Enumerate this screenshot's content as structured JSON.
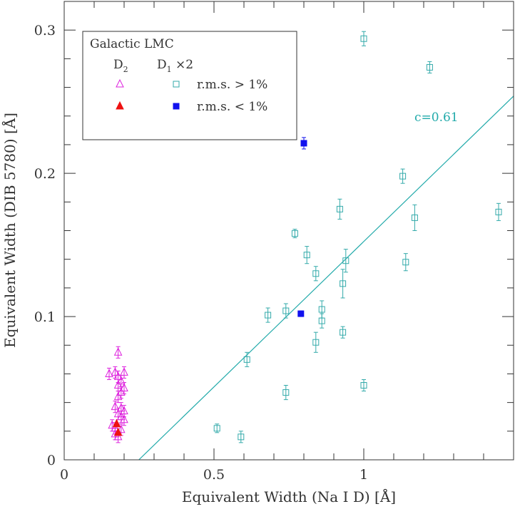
{
  "chart_data": {
    "type": "scatter",
    "xlabel": "Equivalent Width (Na I D) [Å]",
    "ylabel": "Equivalent Width (DIB 5780) [Å]",
    "xlim": [
      0,
      1.5
    ],
    "ylim": [
      0,
      0.32
    ],
    "x_ticks": [
      0,
      0.5,
      1
    ],
    "x_tick_labels": [
      "0",
      "0.5",
      "1"
    ],
    "y_ticks": [
      0,
      0.1,
      0.2,
      0.3
    ],
    "y_tick_labels": [
      "0",
      "0.1",
      "0.2",
      "0.3"
    ],
    "annotation": "c=0.61",
    "fit_line": {
      "slope": 0.203,
      "intercept": -0.0506,
      "color": "#22aaaa"
    },
    "legend": {
      "position": "top-left",
      "header": "Galactic  LMC",
      "col1": "D",
      "col1_sub": "2",
      "col2": "D",
      "col2_sub": "1",
      "col2_suffix": " ×2",
      "row1_label": "r.m.s. > 1%",
      "row2_label": "r.m.s. < 1%"
    },
    "series": [
      {
        "name": "Galactic r.m.s. > 1%",
        "marker": "triangle-open",
        "color": "#dd22dd",
        "points": [
          {
            "x": 0.18,
            "y": 0.075,
            "err": 0.004
          },
          {
            "x": 0.15,
            "y": 0.06,
            "err": 0.004
          },
          {
            "x": 0.17,
            "y": 0.061,
            "err": 0.004
          },
          {
            "x": 0.2,
            "y": 0.061,
            "err": 0.004
          },
          {
            "x": 0.18,
            "y": 0.058,
            "err": 0.004
          },
          {
            "x": 0.19,
            "y": 0.055,
            "err": 0.004
          },
          {
            "x": 0.18,
            "y": 0.052,
            "err": 0.004
          },
          {
            "x": 0.2,
            "y": 0.05,
            "err": 0.004
          },
          {
            "x": 0.19,
            "y": 0.047,
            "err": 0.004
          },
          {
            "x": 0.18,
            "y": 0.044,
            "err": 0.004
          },
          {
            "x": 0.17,
            "y": 0.037,
            "err": 0.004
          },
          {
            "x": 0.19,
            "y": 0.036,
            "err": 0.004
          },
          {
            "x": 0.2,
            "y": 0.034,
            "err": 0.004
          },
          {
            "x": 0.18,
            "y": 0.032,
            "err": 0.004
          },
          {
            "x": 0.19,
            "y": 0.03,
            "err": 0.004
          },
          {
            "x": 0.2,
            "y": 0.028,
            "err": 0.004
          },
          {
            "x": 0.16,
            "y": 0.024,
            "err": 0.004
          },
          {
            "x": 0.17,
            "y": 0.022,
            "err": 0.004
          },
          {
            "x": 0.19,
            "y": 0.021,
            "err": 0.004
          },
          {
            "x": 0.17,
            "y": 0.018,
            "err": 0.004
          },
          {
            "x": 0.18,
            "y": 0.016,
            "err": 0.004
          }
        ]
      },
      {
        "name": "Galactic r.m.s. < 1%",
        "marker": "triangle-filled",
        "color": "#ee1111",
        "points": [
          {
            "x": 0.175,
            "y": 0.025,
            "err": 0.0
          },
          {
            "x": 0.18,
            "y": 0.019,
            "err": 0.0
          }
        ]
      },
      {
        "name": "LMC r.m.s. > 1%",
        "marker": "square-open",
        "color": "#33aaaa",
        "points": [
          {
            "x": 1.0,
            "y": 0.294,
            "err": 0.005
          },
          {
            "x": 1.22,
            "y": 0.274,
            "err": 0.004
          },
          {
            "x": 1.13,
            "y": 0.198,
            "err": 0.005
          },
          {
            "x": 0.92,
            "y": 0.175,
            "err": 0.007
          },
          {
            "x": 1.17,
            "y": 0.169,
            "err": 0.009
          },
          {
            "x": 1.45,
            "y": 0.173,
            "err": 0.006
          },
          {
            "x": 0.77,
            "y": 0.158,
            "err": 0.003
          },
          {
            "x": 0.81,
            "y": 0.143,
            "err": 0.006
          },
          {
            "x": 0.94,
            "y": 0.139,
            "err": 0.008
          },
          {
            "x": 1.14,
            "y": 0.138,
            "err": 0.006
          },
          {
            "x": 0.84,
            "y": 0.13,
            "err": 0.005
          },
          {
            "x": 0.93,
            "y": 0.123,
            "err": 0.01
          },
          {
            "x": 0.86,
            "y": 0.105,
            "err": 0.006
          },
          {
            "x": 0.74,
            "y": 0.104,
            "err": 0.005
          },
          {
            "x": 0.68,
            "y": 0.101,
            "err": 0.005
          },
          {
            "x": 0.86,
            "y": 0.097,
            "err": 0.005
          },
          {
            "x": 0.93,
            "y": 0.089,
            "err": 0.004
          },
          {
            "x": 0.84,
            "y": 0.082,
            "err": 0.007
          },
          {
            "x": 0.61,
            "y": 0.07,
            "err": 0.005
          },
          {
            "x": 1.0,
            "y": 0.052,
            "err": 0.004
          },
          {
            "x": 0.74,
            "y": 0.047,
            "err": 0.005
          },
          {
            "x": 0.51,
            "y": 0.022,
            "err": 0.003
          },
          {
            "x": 0.59,
            "y": 0.016,
            "err": 0.004
          }
        ]
      },
      {
        "name": "LMC r.m.s. < 1%",
        "marker": "square-filled",
        "color": "#1111ee",
        "points": [
          {
            "x": 0.8,
            "y": 0.221,
            "err": 0.004
          },
          {
            "x": 0.79,
            "y": 0.102,
            "err": 0.002
          }
        ]
      }
    ]
  }
}
